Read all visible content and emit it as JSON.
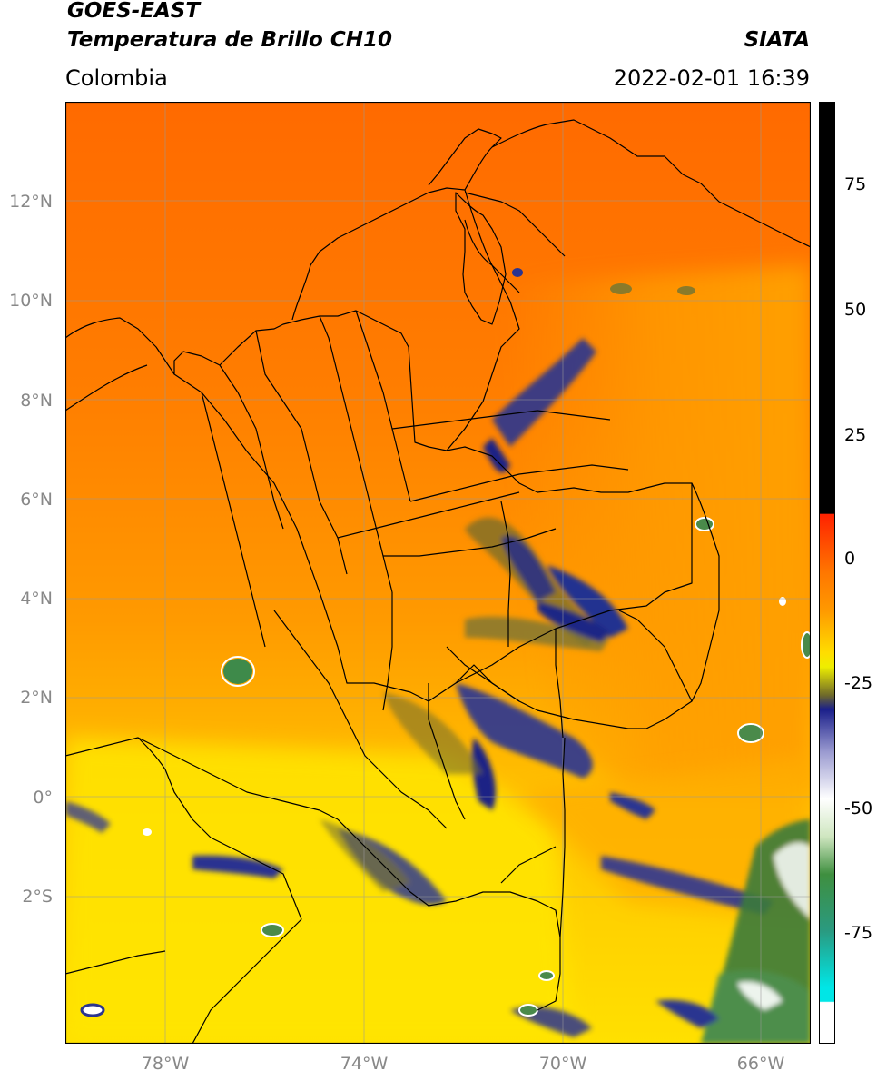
{
  "header": {
    "satellite": "GOES-EAST",
    "product": "Temperatura de Brillo CH10",
    "region": "Colombia",
    "agency": "SIATA",
    "datetime": "2022-02-01 16:39"
  },
  "axes": {
    "lat_ticks": [
      "12°N",
      "10°N",
      "8°N",
      "6°N",
      "4°N",
      "2°N",
      "0°",
      "2°S"
    ],
    "lon_ticks": [
      "78°W",
      "74°W",
      "70°W",
      "66°W"
    ]
  },
  "colorbar": {
    "ticks": [
      "75",
      "50",
      "25",
      "0",
      "-25",
      "-50",
      "-75"
    ],
    "colors": {
      "black": "#000000",
      "red": "#ff2a00",
      "orange": "#ff9900",
      "yellow": "#ffee00",
      "olive": "#6f6a2a",
      "navy": "#1a1f8a",
      "white": "#ffffff",
      "green": "#3f8f3f",
      "cyan": "#00e6e6"
    }
  },
  "map_colors": {
    "north_warm": "#ff6a00",
    "mid_orange": "#ff9a00",
    "south_yellow": "#ffe400",
    "cold_cloud": "#28308f",
    "border": "#000000",
    "grid": "#9a9a9a"
  }
}
